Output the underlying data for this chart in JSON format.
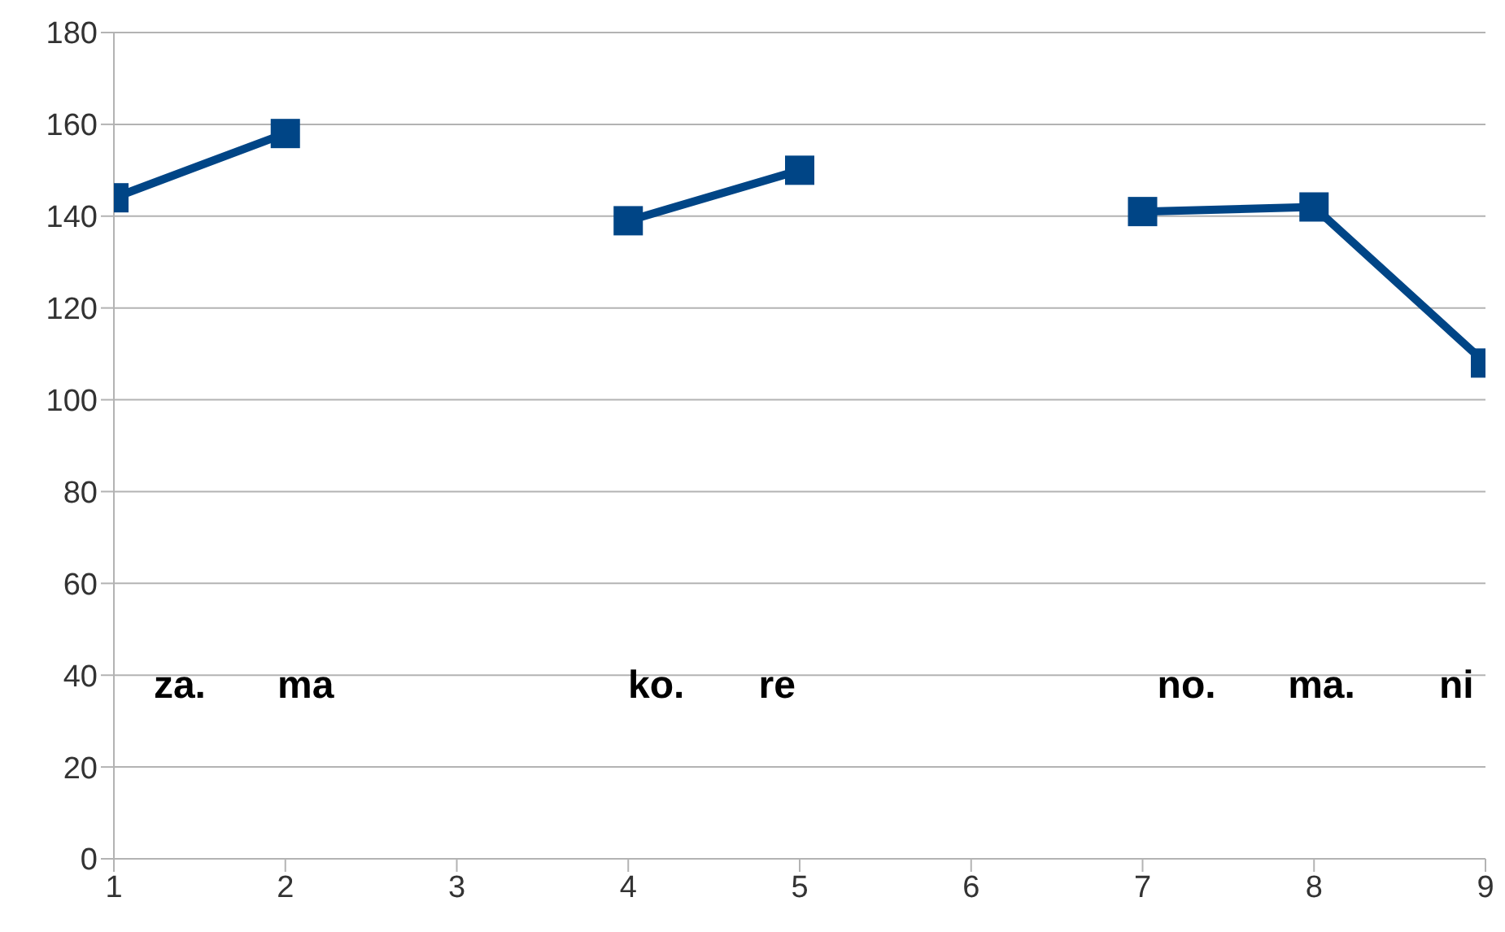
{
  "chart_data": {
    "type": "line",
    "x": [
      1,
      2,
      3,
      4,
      5,
      6,
      7,
      8,
      9
    ],
    "series": [
      {
        "color": "#004586",
        "values": [
          144,
          158,
          null,
          139,
          150,
          null,
          141,
          142,
          108
        ]
      }
    ],
    "xlim": [
      1,
      9
    ],
    "xticks": [
      1,
      2,
      3,
      4,
      5,
      6,
      7,
      8,
      9
    ],
    "ylim": [
      0,
      180
    ],
    "yticks": [
      0,
      20,
      40,
      60,
      80,
      100,
      120,
      140,
      160,
      180
    ],
    "grid": "y",
    "marker": "square",
    "line_style": "solid",
    "legend": false,
    "annotations": [
      "za.",
      "ma",
      "ko.",
      "re",
      "no.",
      "ma.",
      "ni"
    ]
  }
}
